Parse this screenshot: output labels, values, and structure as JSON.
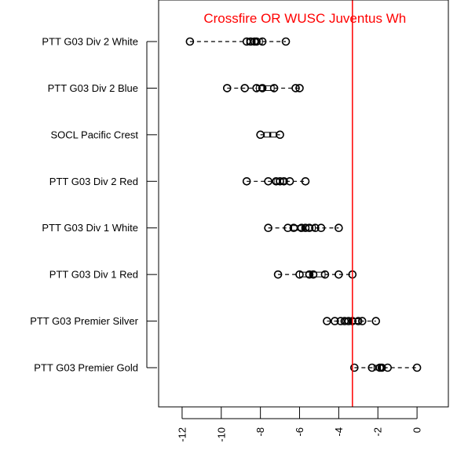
{
  "chart_data": {
    "type": "box",
    "orientation": "horizontal",
    "xlim": [
      -13.2,
      1.6
    ],
    "x_ticks": [
      -12,
      -10,
      -8,
      -6,
      -4,
      -2,
      0
    ],
    "x_tick_labels": [
      "-12",
      "-10",
      "-8",
      "-6",
      "-4",
      "-2",
      "0"
    ],
    "categories": [
      "PTT G03 Div 2 White",
      "PTT G03 Div 2 Blue",
      "SOCL Pacific Crest",
      "PTT G03 Div 2 Red",
      "PTT G03 Div 1 White",
      "PTT G03 Div 1 Red",
      "PTT G03 Premier Silver",
      "PTT G03 Premier Gold"
    ],
    "series": [
      {
        "boxes": [
          {
            "min": -11.6,
            "q1": -8.7,
            "median": -8.3,
            "q3": -7.9,
            "max": -6.7,
            "points": [
              -11.6,
              -8.7,
              -8.5,
              -8.3,
              -8.2,
              -7.9,
              -6.7
            ]
          },
          {
            "min": -9.7,
            "q1": -8.2,
            "median": -7.8,
            "q3": -7.3,
            "max": -6.0,
            "points": [
              -9.7,
              -8.8,
              -8.2,
              -7.9,
              -7.3,
              -6.2,
              -6.0
            ]
          },
          {
            "min": -8.0,
            "q1": -7.8,
            "median": -7.5,
            "q3": -7.2,
            "max": -7.0,
            "points": [
              -8.0,
              -7.0
            ]
          },
          {
            "min": -8.7,
            "q1": -7.3,
            "median": -7.0,
            "q3": -6.7,
            "max": -5.7,
            "points": [
              -8.7,
              -7.6,
              -7.2,
              -7.0,
              -6.8,
              -6.5,
              -5.7
            ]
          },
          {
            "min": -7.6,
            "q1": -6.4,
            "median": -5.8,
            "q3": -5.2,
            "max": -4.0,
            "points": [
              -7.6,
              -6.6,
              -6.3,
              -5.9,
              -5.7,
              -5.5,
              -5.2,
              -4.9,
              -4.0
            ]
          },
          {
            "min": -7.1,
            "q1": -6.0,
            "median": -5.4,
            "q3": -4.7,
            "max": -3.3,
            "points": [
              -7.1,
              -6.0,
              -5.5,
              -5.3,
              -4.7,
              -4.0,
              -3.3
            ]
          },
          {
            "min": -4.6,
            "q1": -3.8,
            "median": -3.4,
            "q3": -2.9,
            "max": -2.1,
            "points": [
              -4.6,
              -4.2,
              -3.9,
              -3.7,
              -3.5,
              -3.3,
              -3.0,
              -2.8,
              -2.1
            ]
          },
          {
            "min": -3.2,
            "q1": -2.2,
            "median": -1.9,
            "q3": -1.7,
            "max": 0.0,
            "points": [
              -3.2,
              -2.3,
              -1.9,
              -1.8,
              -1.5,
              0.0
            ]
          }
        ]
      }
    ],
    "reference_line": {
      "x": -3.3,
      "color": "#ff0000"
    },
    "annotations": [
      {
        "text": "Crossfire OR WUSC Juventus Wh",
        "x": -10.9,
        "color": "#ff0000"
      }
    ],
    "grid": false,
    "legend": "none"
  }
}
